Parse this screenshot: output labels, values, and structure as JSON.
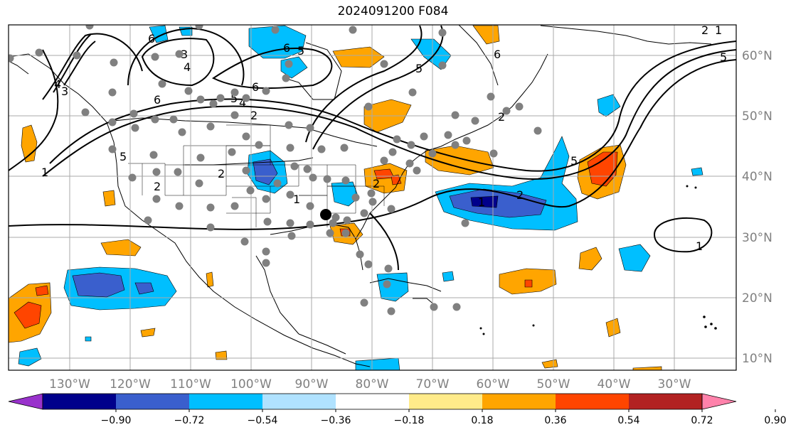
{
  "title": "2024091200 F084",
  "lon_labels": [
    "130°W",
    "120°W",
    "110°W",
    "100°W",
    "90°W",
    "80°W",
    "70°W",
    "60°W",
    "50°W",
    "40°W",
    "30°W"
  ],
  "lat_labels": [
    "60°N",
    "50°N",
    "40°N",
    "30°N",
    "20°N",
    "10°N"
  ],
  "colorbar": {
    "colors": [
      "#9932cc",
      "#00008b",
      "#3a5fcd",
      "#00bfff",
      "#b0e2ff",
      "#ffffff",
      "#ffeb8a",
      "#ffa500",
      "#ff4500",
      "#b22222",
      "#ff82ab"
    ],
    "ticks": [
      "−0.90",
      "−0.72",
      "−0.54",
      "−0.36",
      "−0.18",
      "0.18",
      "0.36",
      "0.54",
      "0.72",
      "0.90"
    ]
  },
  "contour_labels": [
    "6",
    "5",
    "4",
    "3",
    "2",
    "1",
    "6",
    "5",
    "4",
    "2",
    "6",
    "5",
    "4",
    "2",
    "3",
    "2",
    "1",
    "2",
    "5",
    "6",
    "5",
    "1",
    "1",
    "2",
    "1",
    "2",
    "5",
    "6"
  ],
  "colors": {
    "gridline": "#aaaaaa",
    "station_dot": "#808080",
    "frame": "#000000"
  }
}
